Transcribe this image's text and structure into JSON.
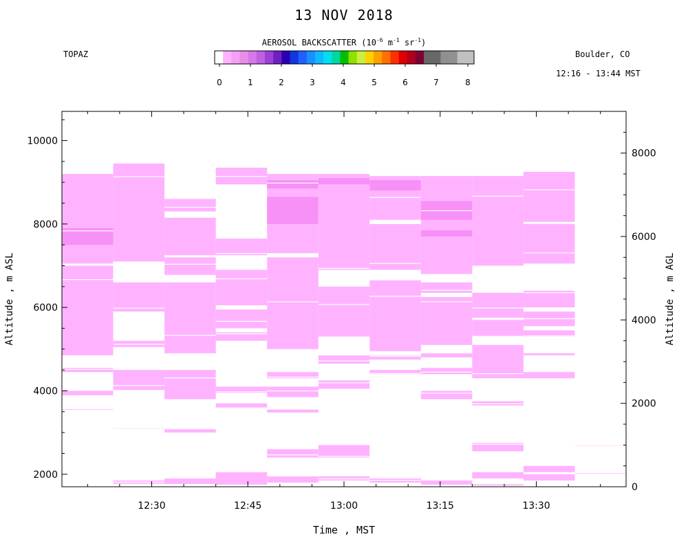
{
  "header": {
    "title": "13 NOV 2018",
    "site": "TOPAZ",
    "location": "Boulder, CO",
    "time_range": "12:16 - 13:44 MST"
  },
  "colorbar": {
    "title_prefix": "AEROSOL BACKSCATTER (10",
    "title_exp1": "-6",
    "title_mid1": " m",
    "title_exp2": "-1",
    "title_mid2": " sr",
    "title_exp3": "-1",
    "title_suffix": ")",
    "ticks": [
      "0",
      "1",
      "2",
      "3",
      "4",
      "5",
      "6",
      "7",
      "8"
    ],
    "colors": [
      "#ffffff",
      "#ffb3ff",
      "#f5a0f5",
      "#e88ee8",
      "#d877e8",
      "#c060e0",
      "#9c40d8",
      "#7020c0",
      "#2a00b0",
      "#1038e0",
      "#2060ff",
      "#1890ff",
      "#10b8ff",
      "#00e0f0",
      "#00d8a0",
      "#00c000",
      "#90e000",
      "#c8f040",
      "#ffd000",
      "#ffa000",
      "#ff7000",
      "#ff3000",
      "#e00000",
      "#b00020",
      "#800030",
      "#686868",
      "#686868",
      "#909090",
      "#909090",
      "#c0c0c0",
      "#c0c0c0"
    ]
  },
  "axes": {
    "xlabel": "Time , MST",
    "ylabel_left": "Altitude , m ASL",
    "ylabel_right": "Altitude , m AGL",
    "x_ticks": [
      "12:30",
      "12:45",
      "13:00",
      "13:15",
      "13:30"
    ],
    "y_ticks_left": [
      "2000",
      "4000",
      "6000",
      "8000",
      "10000"
    ],
    "y_ticks_right": [
      "0",
      "2000",
      "4000",
      "6000",
      "8000"
    ]
  },
  "chart_data": {
    "type": "heatmap",
    "title": "13 NOV 2018",
    "x_unit": "time MST",
    "xlim": [
      "12:16",
      "13:44"
    ],
    "ylim_asl": [
      1700,
      10700
    ],
    "ylim_agl": [
      0,
      9000
    ],
    "xlabel": "Time , MST",
    "ylabel": "Altitude , m ASL",
    "y2label": "Altitude , m AGL",
    "colorbar_range": [
      0,
      8
    ],
    "colors": {
      "fill": "#ffb3ff",
      "strong": "#f790f7"
    },
    "profiles": [
      {
        "start": "12:16",
        "end": "12:24",
        "bands": [
          [
            4850,
            7000
          ],
          [
            7050,
            9200
          ],
          [
            4450,
            4550
          ],
          [
            3880,
            4000
          ],
          [
            3530,
            3560
          ]
        ],
        "strong": [
          [
            7500,
            7900
          ]
        ]
      },
      {
        "start": "12:24",
        "end": "12:32",
        "bands": [
          [
            5900,
            6600
          ],
          [
            5050,
            5200
          ],
          [
            7100,
            9450
          ],
          [
            4020,
            4500
          ],
          [
            1770,
            1850
          ],
          [
            3100,
            3120
          ]
        ],
        "strong": []
      },
      {
        "start": "12:32",
        "end": "12:40",
        "bands": [
          [
            4900,
            6600
          ],
          [
            6780,
            7200
          ],
          [
            7250,
            8150
          ],
          [
            8300,
            8600
          ],
          [
            3800,
            4500
          ],
          [
            1750,
            1900
          ],
          [
            3000,
            3080
          ]
        ],
        "strong": []
      },
      {
        "start": "12:40",
        "end": "12:48",
        "bands": [
          [
            5500,
            5950
          ],
          [
            6050,
            6900
          ],
          [
            7250,
            7650
          ],
          [
            8950,
            9350
          ],
          [
            5200,
            5400
          ],
          [
            3950,
            4100
          ],
          [
            3600,
            3700
          ],
          [
            1750,
            2050
          ]
        ],
        "strong": []
      },
      {
        "start": "12:48",
        "end": "12:56",
        "bands": [
          [
            5000,
            7200
          ],
          [
            7300,
            9200
          ],
          [
            4300,
            4450
          ],
          [
            3850,
            4100
          ],
          [
            3480,
            3550
          ],
          [
            2400,
            2600
          ],
          [
            1800,
            1950
          ]
        ],
        "strong": [
          [
            8000,
            8650
          ],
          [
            8850,
            9050
          ]
        ]
      },
      {
        "start": "12:56",
        "end": "13:04",
        "bands": [
          [
            5300,
            6500
          ],
          [
            6900,
            9200
          ],
          [
            4650,
            4850
          ],
          [
            4050,
            4250
          ],
          [
            2400,
            2700
          ],
          [
            1850,
            1950
          ]
        ],
        "strong": [
          [
            8950,
            9100
          ]
        ]
      },
      {
        "start": "13:04",
        "end": "13:12",
        "bands": [
          [
            4950,
            6650
          ],
          [
            6900,
            8000
          ],
          [
            8100,
            9150
          ],
          [
            4750,
            4850
          ],
          [
            4400,
            4500
          ],
          [
            1800,
            1900
          ]
        ],
        "strong": [
          [
            8800,
            9050
          ]
        ]
      },
      {
        "start": "13:12",
        "end": "13:20",
        "bands": [
          [
            5100,
            6250
          ],
          [
            6350,
            6600
          ],
          [
            6800,
            9150
          ],
          [
            4800,
            4900
          ],
          [
            4400,
            4550
          ],
          [
            3800,
            4000
          ],
          [
            1750,
            1850
          ]
        ],
        "strong": [
          [
            8100,
            8550
          ],
          [
            7700,
            7850
          ]
        ]
      },
      {
        "start": "13:20",
        "end": "13:28",
        "bands": [
          [
            5300,
            5700
          ],
          [
            5750,
            6350
          ],
          [
            7000,
            9150
          ],
          [
            4300,
            5100
          ],
          [
            3650,
            3750
          ],
          [
            2550,
            2750
          ],
          [
            1900,
            2050
          ],
          [
            1730,
            1760
          ]
        ],
        "strong": []
      },
      {
        "start": "13:28",
        "end": "13:36",
        "bands": [
          [
            5300,
            5450
          ],
          [
            5550,
            5900
          ],
          [
            6000,
            6400
          ],
          [
            7050,
            8000
          ],
          [
            8050,
            9250
          ],
          [
            4850,
            4900
          ],
          [
            4300,
            4450
          ],
          [
            2050,
            2200
          ],
          [
            1850,
            2000
          ]
        ],
        "strong": []
      },
      {
        "start": "13:36",
        "end": "13:44",
        "bands": [
          [
            2650,
            2680
          ],
          [
            1990,
            2030
          ]
        ],
        "strong": []
      }
    ]
  }
}
